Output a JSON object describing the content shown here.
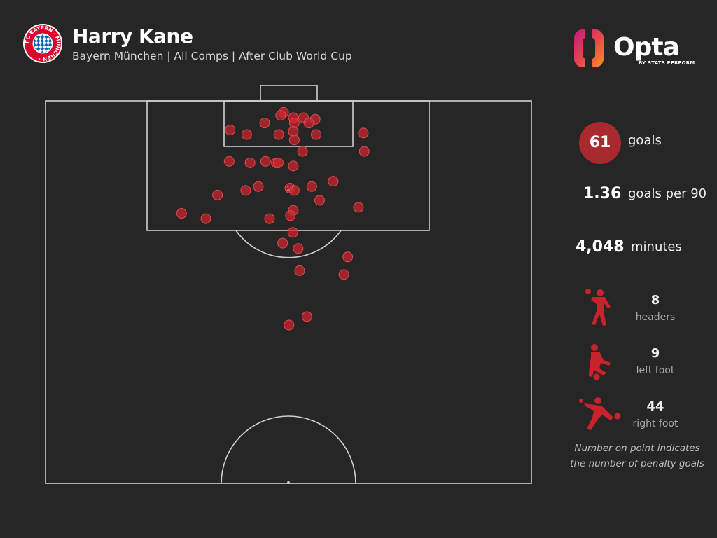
{
  "header": {
    "player": "Harry Kane",
    "subtitle": "Bayern München | All Comps | After Club World Cup",
    "crest_text": "FC BAYERN · MÜNCHEN ·",
    "brand": "Opta",
    "brand_by": "BY STATS PERFORM"
  },
  "colors": {
    "background": "#262626",
    "accent": "#a8292e",
    "shot": "#d0262d",
    "lines": "#cfcfcf"
  },
  "stats": {
    "goals_value": "61",
    "goals_label": "goals",
    "per90_value": "1.36",
    "per90_label": "goals per 90",
    "minutes_value": "4,048",
    "minutes_label": "minutes"
  },
  "body_parts": [
    {
      "icon": "header-player-icon",
      "count": "8",
      "label": "headers"
    },
    {
      "icon": "left-foot-player-icon",
      "count": "9",
      "label": "left foot"
    },
    {
      "icon": "right-foot-player-icon",
      "count": "44",
      "label": "right foot"
    }
  ],
  "note": {
    "line1": "Number on point indicates",
    "line2": "the number of penalty goals"
  },
  "chart_data": {
    "type": "scatter",
    "title": "",
    "x_axis": "pitch width (0 = left touchline, 100 = right touchline)",
    "y_axis": "distance from goal line (0 = goal line, 50 = halfway line)",
    "xlim": [
      0,
      100
    ],
    "ylim": [
      0,
      50
    ],
    "points": [
      {
        "x": 49.0,
        "y": 1.5
      },
      {
        "x": 48.4,
        "y": 1.9
      },
      {
        "x": 51.0,
        "y": 2.2
      },
      {
        "x": 53.1,
        "y": 2.2
      },
      {
        "x": 55.5,
        "y": 2.4
      },
      {
        "x": 51.2,
        "y": 2.9
      },
      {
        "x": 54.2,
        "y": 2.9
      },
      {
        "x": 45.1,
        "y": 2.9
      },
      {
        "x": 38.0,
        "y": 3.8
      },
      {
        "x": 41.4,
        "y": 4.4
      },
      {
        "x": 48.0,
        "y": 4.4
      },
      {
        "x": 51.0,
        "y": 4.0
      },
      {
        "x": 55.7,
        "y": 4.4
      },
      {
        "x": 65.4,
        "y": 4.2
      },
      {
        "x": 51.2,
        "y": 5.1
      },
      {
        "x": 65.6,
        "y": 6.6
      },
      {
        "x": 52.9,
        "y": 6.6
      },
      {
        "x": 37.8,
        "y": 7.9
      },
      {
        "x": 42.1,
        "y": 8.1
      },
      {
        "x": 45.3,
        "y": 7.9
      },
      {
        "x": 47.5,
        "y": 8.1
      },
      {
        "x": 47.9,
        "y": 8.1
      },
      {
        "x": 51.0,
        "y": 8.5
      },
      {
        "x": 59.2,
        "y": 10.5
      },
      {
        "x": 54.8,
        "y": 11.2
      },
      {
        "x": 43.8,
        "y": 11.2
      },
      {
        "x": 41.2,
        "y": 11.7
      },
      {
        "x": 50.3,
        "y": 11.4,
        "label": "17"
      },
      {
        "x": 51.2,
        "y": 11.7
      },
      {
        "x": 35.4,
        "y": 12.3
      },
      {
        "x": 56.4,
        "y": 13.0
      },
      {
        "x": 64.4,
        "y": 13.9
      },
      {
        "x": 51.0,
        "y": 14.3
      },
      {
        "x": 28.0,
        "y": 14.7
      },
      {
        "x": 33.0,
        "y": 15.4
      },
      {
        "x": 46.1,
        "y": 15.4
      },
      {
        "x": 50.4,
        "y": 15.0
      },
      {
        "x": 50.9,
        "y": 17.2
      },
      {
        "x": 48.8,
        "y": 18.6
      },
      {
        "x": 52.0,
        "y": 19.3
      },
      {
        "x": 62.2,
        "y": 20.4
      },
      {
        "x": 52.3,
        "y": 22.2
      },
      {
        "x": 61.4,
        "y": 22.7
      },
      {
        "x": 53.8,
        "y": 28.2
      },
      {
        "x": 50.1,
        "y": 29.3
      }
    ]
  }
}
